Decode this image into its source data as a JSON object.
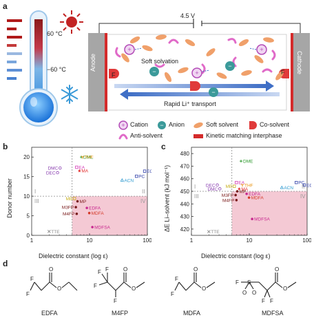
{
  "panel_a": {
    "letter": "a",
    "temp_high": "60 °C",
    "temp_low": "−60 °C",
    "voltage": "4.5 V",
    "anode": "Anode",
    "cathode": "Cathode",
    "soft_solvation": "Soft solvation",
    "rapid_transport": "Rapid Li⁺ transport",
    "interphase_letter": "F",
    "legend": {
      "cation": "Cation",
      "anion": "Anion",
      "soft_solvent": "Soft solvent",
      "co_solvent": "Co-solvent",
      "anti_solvent": "Anti-solvent",
      "interphase": "Kinetic matching interphase"
    },
    "colors": {
      "electrode": "#a6a6a6",
      "interphase": "#d42b2b",
      "cation": "#b34bb7",
      "anion": "#3b9a9a",
      "soft_solvent": "#f0a06a",
      "co_solvent": "#e03a3a",
      "anti_solvent": "#e06ac8",
      "arrow": "#3f6fc6"
    }
  },
  "panel_b": {
    "letter": "b",
    "xlabel": "Dielectric constant (log ε)",
    "ylabel": "Donor number",
    "quadrants": [
      "I",
      "II",
      "III",
      "IV"
    ]
  },
  "panel_c": {
    "letter": "c",
    "xlabel": "Dielectric constant (log ε)",
    "ylabel": "ΔE Li–solvent (kJ mol⁻¹)",
    "quadrants": [
      "I",
      "II",
      "III",
      "IV"
    ]
  },
  "panel_d": {
    "letter": "d",
    "molecules": [
      "EDFA",
      "M4FP",
      "MDFA",
      "MDFSA"
    ]
  },
  "chart_data": [
    {
      "type": "scatter",
      "xlabel": "Dielectric constant (log ε)",
      "ylabel": "Donor number",
      "xscale": "log",
      "xlim": [
        1,
        100
      ],
      "ylim": [
        0,
        22.5
      ],
      "xticks": [
        1,
        10,
        100
      ],
      "yticks": [
        0,
        5,
        10,
        15,
        20
      ],
      "threshold_x": 5,
      "threshold_y": 10,
      "points": [
        {
          "name": "DME",
          "x": 7.2,
          "y": 20.0,
          "color": "#2e9a2e",
          "marker": "plus"
        },
        {
          "name": "THF",
          "x": 7.6,
          "y": 20.0,
          "color": "#e8900c",
          "marker": "tri"
        },
        {
          "name": "DMC",
          "x": 3.1,
          "y": 17.2,
          "color": "#8a3fb0",
          "marker": "open-circle"
        },
        {
          "name": "DEC",
          "x": 2.8,
          "y": 16.0,
          "color": "#8a3fb0",
          "marker": "open-circle"
        },
        {
          "name": "EA",
          "x": 6.0,
          "y": 17.4,
          "color": "#d43bb5",
          "marker": "open-square"
        },
        {
          "name": "MA",
          "x": 6.7,
          "y": 16.5,
          "color": "#e23030",
          "marker": "star"
        },
        {
          "name": "ACN",
          "x": 36.6,
          "y": 14.1,
          "color": "#2d9ad0",
          "marker": "open-tri"
        },
        {
          "name": "PC",
          "x": 64.9,
          "y": 15.1,
          "color": "#2f3fa8",
          "marker": "open-square"
        },
        {
          "name": "EC",
          "x": 89.8,
          "y": 16.4,
          "color": "#2f3fa8",
          "marker": "open-square"
        },
        {
          "name": "MB",
          "x": 5.5,
          "y": 9.4,
          "color": "#c8b020",
          "marker": "open-square"
        },
        {
          "name": "MP",
          "x": 6.2,
          "y": 8.7,
          "color": "#7a1b1b",
          "marker": "circle"
        },
        {
          "name": "M3FP",
          "x": 5.8,
          "y": 7.2,
          "color": "#7a1b1b",
          "marker": "circle"
        },
        {
          "name": "M4FP",
          "x": 6.0,
          "y": 5.5,
          "color": "#7a1b1b",
          "marker": "circle"
        },
        {
          "name": "EDFA",
          "x": 9.0,
          "y": 7.0,
          "color": "#c8298f",
          "marker": "circle"
        },
        {
          "name": "MDFA",
          "x": 9.9,
          "y": 5.7,
          "color": "#d43b2b",
          "marker": "circle"
        },
        {
          "name": "MDFSA",
          "x": 11.2,
          "y": 2.1,
          "color": "#c8298f",
          "marker": "circle"
        },
        {
          "name": "TTE",
          "x": 2.0,
          "y": 1.0,
          "color": "#888888",
          "marker": "cross"
        }
      ]
    },
    {
      "type": "scatter",
      "xlabel": "Dielectric constant (log ε)",
      "ylabel": "ΔE Li–solvent (kJ mol⁻¹)",
      "xscale": "log",
      "xlim": [
        1,
        100
      ],
      "ylim": [
        415,
        485
      ],
      "xticks": [
        1,
        10,
        100
      ],
      "yticks": [
        420,
        430,
        440,
        450,
        460,
        470,
        480
      ],
      "threshold_x": 5,
      "threshold_y": 450,
      "points": [
        {
          "name": "DME",
          "x": 7.2,
          "y": 474,
          "color": "#2e9a2e",
          "marker": "plus"
        },
        {
          "name": "DEC",
          "x": 2.8,
          "y": 455,
          "color": "#8a3fb0",
          "marker": "open-circle"
        },
        {
          "name": "DMC",
          "x": 3.1,
          "y": 452,
          "color": "#8a3fb0",
          "marker": "open-circle"
        },
        {
          "name": "EA",
          "x": 6.0,
          "y": 457,
          "color": "#d43bb5",
          "marker": "open-square"
        },
        {
          "name": "THF",
          "x": 7.6,
          "y": 455,
          "color": "#e8900c",
          "marker": "tri"
        },
        {
          "name": "MA",
          "x": 6.7,
          "y": 452,
          "color": "#e23030",
          "marker": "star"
        },
        {
          "name": "MB",
          "x": 5.5,
          "y": 454,
          "color": "#c8b020",
          "marker": "open-square"
        },
        {
          "name": "MP",
          "x": 6.2,
          "y": 450,
          "color": "#7a1b1b",
          "marker": "circle"
        },
        {
          "name": "ACN",
          "x": 36.6,
          "y": 453,
          "color": "#2d9ad0",
          "marker": "open-tri"
        },
        {
          "name": "PC",
          "x": 64.9,
          "y": 457,
          "color": "#2f3fa8",
          "marker": "open-square"
        },
        {
          "name": "EC",
          "x": 89.8,
          "y": 455,
          "color": "#2f3fa8",
          "marker": "open-square"
        },
        {
          "name": "M3FP",
          "x": 5.8,
          "y": 447,
          "color": "#7a1b1b",
          "marker": "circle"
        },
        {
          "name": "M4FP",
          "x": 6.0,
          "y": 443,
          "color": "#7a1b1b",
          "marker": "circle"
        },
        {
          "name": "EDFA",
          "x": 9.0,
          "y": 448,
          "color": "#c8298f",
          "marker": "circle"
        },
        {
          "name": "MDFA",
          "x": 9.9,
          "y": 445,
          "color": "#d43b2b",
          "marker": "circle"
        },
        {
          "name": "MDFSA",
          "x": 11.2,
          "y": 428,
          "color": "#c8298f",
          "marker": "circle"
        },
        {
          "name": "TTE",
          "x": 2.0,
          "y": 418,
          "color": "#888888",
          "marker": "cross"
        }
      ]
    }
  ]
}
